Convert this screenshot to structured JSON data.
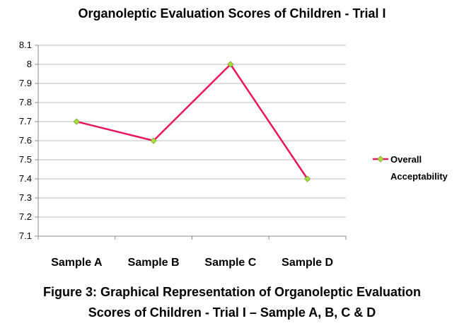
{
  "chart_data": {
    "type": "line",
    "title": "Organoleptic Evaluation Scores of Children - Trial I",
    "categories": [
      "Sample A",
      "Sample B",
      "Sample C",
      "Sample D"
    ],
    "series": [
      {
        "name": "Overall Acceptability",
        "values": [
          7.7,
          7.6,
          8.0,
          7.4
        ]
      }
    ],
    "ylim": [
      7.1,
      8.1
    ],
    "yticks": [
      "7.1",
      "7.2",
      "7.3",
      "7.4",
      "7.5",
      "7.6",
      "7.7",
      "7.8",
      "7.9",
      "8",
      "8.1"
    ],
    "grid": true,
    "legend_position": "right",
    "colors": {
      "line": "#e8175d",
      "marker_fill": "#a8e03c",
      "marker_stroke": "#7a9a30",
      "grid": "#bfbfbf",
      "axis": "#8c8c8c"
    }
  },
  "caption": {
    "line1": "Figure 3: Graphical Representation of Organoleptic Evaluation",
    "line2": "Scores of Children - Trial I – Sample A, B, C & D"
  }
}
